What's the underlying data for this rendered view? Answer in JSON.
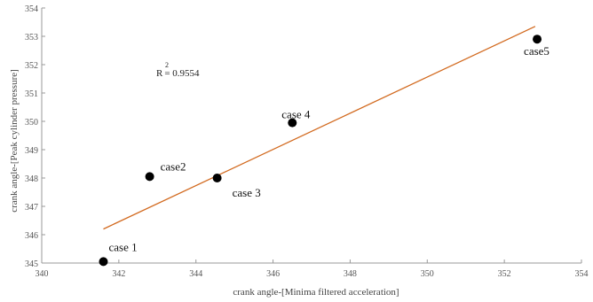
{
  "chart_data": {
    "type": "scatter",
    "xlabel": "crank angle-[Minima filtered acceleration]",
    "ylabel": "crank angle-[Peak cylinder pressure]",
    "xlim": [
      340,
      354
    ],
    "ylim": [
      345,
      354
    ],
    "xticks": [
      "340",
      "342",
      "344",
      "346",
      "348",
      "350",
      "352",
      "354"
    ],
    "yticks": [
      "345",
      "346",
      "347",
      "348",
      "349",
      "350",
      "351",
      "352",
      "353",
      "354"
    ],
    "points": [
      {
        "label": "case 1",
        "x": 341.6,
        "y": 345.05
      },
      {
        "label": "case2",
        "x": 342.8,
        "y": 348.05
      },
      {
        "label": "case 3",
        "x": 344.55,
        "y": 348.0
      },
      {
        "label": "case 4",
        "x": 346.5,
        "y": 349.95
      },
      {
        "label": "case5",
        "x": 352.85,
        "y": 352.9
      }
    ],
    "trendline": {
      "x": [
        341.6,
        352.8
      ],
      "y": [
        346.2,
        353.35
      ]
    },
    "r_squared_label": "R",
    "r_squared_sup": "2",
    "r_squared_value": "= 0.9554",
    "grid": false,
    "colors": {
      "points": "#000000",
      "trendline": "#d2691e",
      "axes": "#999999"
    }
  }
}
